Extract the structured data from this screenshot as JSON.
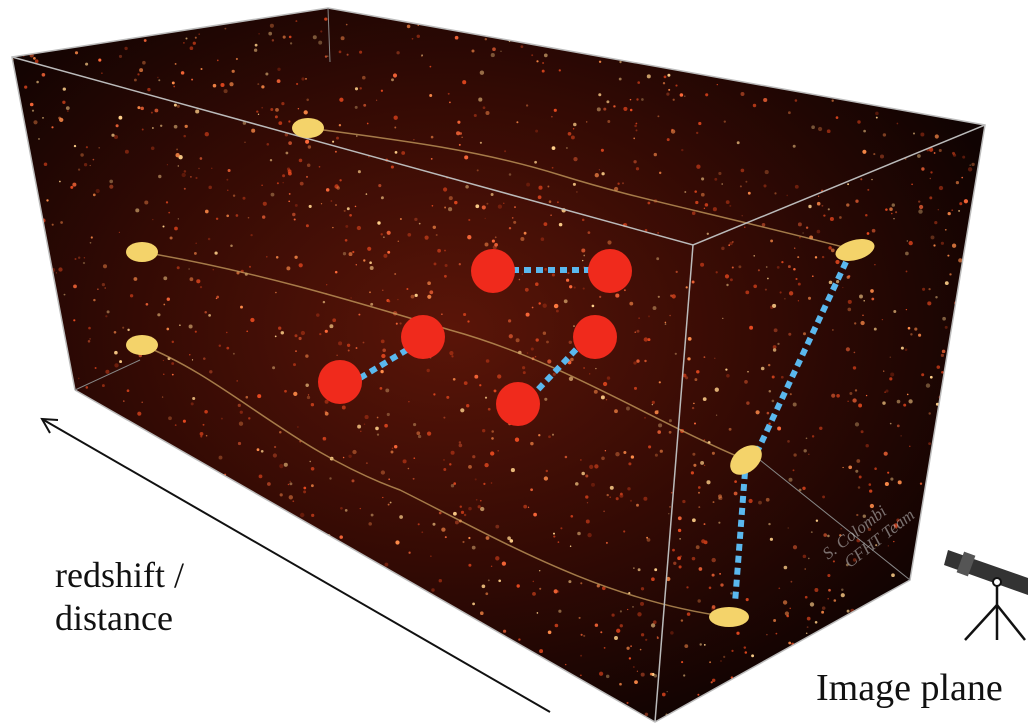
{
  "labels": {
    "axis": [
      "redshift /",
      "distance"
    ],
    "plane": "Image plane",
    "credit": [
      "S. Colombi",
      "CFHT Team"
    ]
  }
}
